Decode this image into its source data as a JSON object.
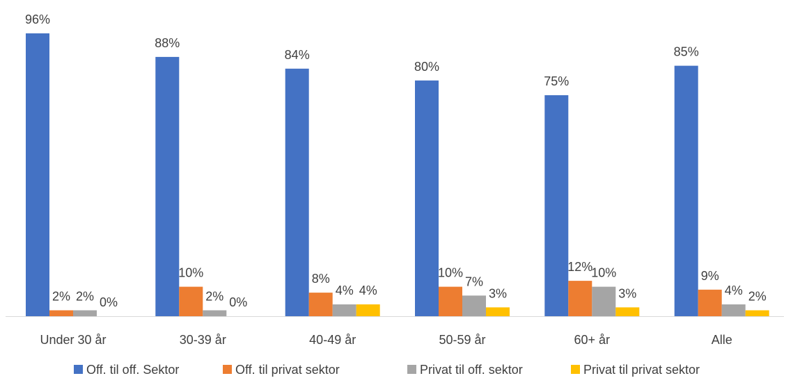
{
  "chart_data": {
    "type": "bar",
    "categories": [
      "Under 30 år",
      "30-39 år",
      "40-49 år",
      "50-59 år",
      "60+ år",
      "Alle"
    ],
    "series": [
      {
        "name": "Off. til off. Sektor",
        "color": "#4472C4",
        "values": [
          96,
          88,
          84,
          80,
          75,
          85
        ],
        "labels": [
          "96%",
          "88%",
          "84%",
          "80%",
          "75%",
          "85%"
        ]
      },
      {
        "name": "Off. til privat sektor",
        "color": "#ED7D31",
        "values": [
          2,
          10,
          8,
          10,
          12,
          9
        ],
        "labels": [
          "2%",
          "10%",
          "8%",
          "10%",
          "12%",
          "9%"
        ]
      },
      {
        "name": "Privat til off. sektor",
        "color": "#A5A5A5",
        "values": [
          2,
          2,
          4,
          7,
          10,
          4
        ],
        "labels": [
          "2%",
          "2%",
          "4%",
          "7%",
          "10%",
          "4%"
        ]
      },
      {
        "name": "Privat til privat sektor",
        "color": "#FFC000",
        "values": [
          0,
          0,
          4,
          3,
          3,
          2
        ],
        "labels": [
          "0%",
          "0%",
          "4%",
          "3%",
          "3%",
          "2%"
        ]
      }
    ],
    "ylim": [
      0,
      100
    ],
    "grid": false,
    "legend_position": "bottom",
    "axis_color": "#D9D9D9",
    "label_color": "#404040"
  }
}
